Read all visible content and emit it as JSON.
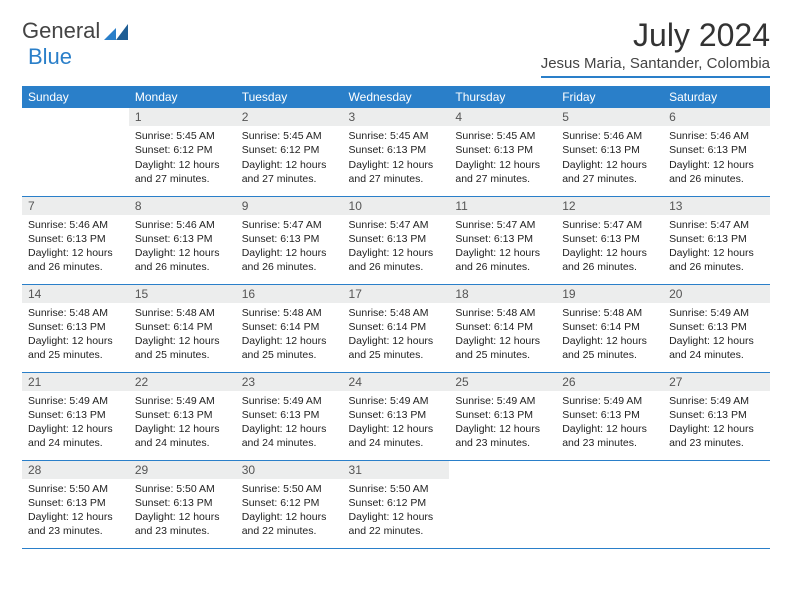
{
  "logo": {
    "text1": "General",
    "text2": "Blue"
  },
  "header": {
    "title": "July 2024",
    "subtitle": "Jesus Maria, Santander, Colombia"
  },
  "colors": {
    "accent": "#2a7fc9",
    "header_bg": "#2a7fc9",
    "daynum_bg": "#eceded",
    "text": "#222222"
  },
  "weekdays": [
    "Sunday",
    "Monday",
    "Tuesday",
    "Wednesday",
    "Thursday",
    "Friday",
    "Saturday"
  ],
  "weeks": [
    [
      {
        "blank": true
      },
      {
        "d": "1",
        "sr": "5:45 AM",
        "ss": "6:12 PM",
        "dl": "12 hours and 27 minutes."
      },
      {
        "d": "2",
        "sr": "5:45 AM",
        "ss": "6:12 PM",
        "dl": "12 hours and 27 minutes."
      },
      {
        "d": "3",
        "sr": "5:45 AM",
        "ss": "6:13 PM",
        "dl": "12 hours and 27 minutes."
      },
      {
        "d": "4",
        "sr": "5:45 AM",
        "ss": "6:13 PM",
        "dl": "12 hours and 27 minutes."
      },
      {
        "d": "5",
        "sr": "5:46 AM",
        "ss": "6:13 PM",
        "dl": "12 hours and 27 minutes."
      },
      {
        "d": "6",
        "sr": "5:46 AM",
        "ss": "6:13 PM",
        "dl": "12 hours and 26 minutes."
      }
    ],
    [
      {
        "d": "7",
        "sr": "5:46 AM",
        "ss": "6:13 PM",
        "dl": "12 hours and 26 minutes."
      },
      {
        "d": "8",
        "sr": "5:46 AM",
        "ss": "6:13 PM",
        "dl": "12 hours and 26 minutes."
      },
      {
        "d": "9",
        "sr": "5:47 AM",
        "ss": "6:13 PM",
        "dl": "12 hours and 26 minutes."
      },
      {
        "d": "10",
        "sr": "5:47 AM",
        "ss": "6:13 PM",
        "dl": "12 hours and 26 minutes."
      },
      {
        "d": "11",
        "sr": "5:47 AM",
        "ss": "6:13 PM",
        "dl": "12 hours and 26 minutes."
      },
      {
        "d": "12",
        "sr": "5:47 AM",
        "ss": "6:13 PM",
        "dl": "12 hours and 26 minutes."
      },
      {
        "d": "13",
        "sr": "5:47 AM",
        "ss": "6:13 PM",
        "dl": "12 hours and 26 minutes."
      }
    ],
    [
      {
        "d": "14",
        "sr": "5:48 AM",
        "ss": "6:13 PM",
        "dl": "12 hours and 25 minutes."
      },
      {
        "d": "15",
        "sr": "5:48 AM",
        "ss": "6:14 PM",
        "dl": "12 hours and 25 minutes."
      },
      {
        "d": "16",
        "sr": "5:48 AM",
        "ss": "6:14 PM",
        "dl": "12 hours and 25 minutes."
      },
      {
        "d": "17",
        "sr": "5:48 AM",
        "ss": "6:14 PM",
        "dl": "12 hours and 25 minutes."
      },
      {
        "d": "18",
        "sr": "5:48 AM",
        "ss": "6:14 PM",
        "dl": "12 hours and 25 minutes."
      },
      {
        "d": "19",
        "sr": "5:48 AM",
        "ss": "6:14 PM",
        "dl": "12 hours and 25 minutes."
      },
      {
        "d": "20",
        "sr": "5:49 AM",
        "ss": "6:13 PM",
        "dl": "12 hours and 24 minutes."
      }
    ],
    [
      {
        "d": "21",
        "sr": "5:49 AM",
        "ss": "6:13 PM",
        "dl": "12 hours and 24 minutes."
      },
      {
        "d": "22",
        "sr": "5:49 AM",
        "ss": "6:13 PM",
        "dl": "12 hours and 24 minutes."
      },
      {
        "d": "23",
        "sr": "5:49 AM",
        "ss": "6:13 PM",
        "dl": "12 hours and 24 minutes."
      },
      {
        "d": "24",
        "sr": "5:49 AM",
        "ss": "6:13 PM",
        "dl": "12 hours and 24 minutes."
      },
      {
        "d": "25",
        "sr": "5:49 AM",
        "ss": "6:13 PM",
        "dl": "12 hours and 23 minutes."
      },
      {
        "d": "26",
        "sr": "5:49 AM",
        "ss": "6:13 PM",
        "dl": "12 hours and 23 minutes."
      },
      {
        "d": "27",
        "sr": "5:49 AM",
        "ss": "6:13 PM",
        "dl": "12 hours and 23 minutes."
      }
    ],
    [
      {
        "d": "28",
        "sr": "5:50 AM",
        "ss": "6:13 PM",
        "dl": "12 hours and 23 minutes."
      },
      {
        "d": "29",
        "sr": "5:50 AM",
        "ss": "6:13 PM",
        "dl": "12 hours and 23 minutes."
      },
      {
        "d": "30",
        "sr": "5:50 AM",
        "ss": "6:12 PM",
        "dl": "12 hours and 22 minutes."
      },
      {
        "d": "31",
        "sr": "5:50 AM",
        "ss": "6:12 PM",
        "dl": "12 hours and 22 minutes."
      },
      {
        "blank": true
      },
      {
        "blank": true
      },
      {
        "blank": true
      }
    ]
  ],
  "labels": {
    "sunrise": "Sunrise:",
    "sunset": "Sunset:",
    "daylight": "Daylight:"
  }
}
